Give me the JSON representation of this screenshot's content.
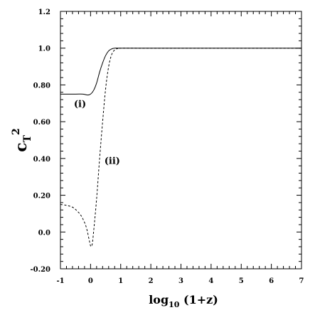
{
  "chart_data": {
    "type": "line",
    "title": "",
    "xlabel": "log10 (1+z)",
    "xlabel_parts": {
      "main": "log",
      "sub": "10",
      "rest": " (1+z)"
    },
    "ylabel": "cT^2",
    "ylabel_parts": {
      "main": "c",
      "sub": "T",
      "sup": "2"
    },
    "xlim": [
      -1,
      7
    ],
    "ylim": [
      -0.2,
      1.2
    ],
    "grid": false,
    "legend": "none",
    "x_ticks": [
      -1,
      0,
      1,
      2,
      3,
      4,
      5,
      6,
      7
    ],
    "x_tick_labels": [
      "-1",
      "0",
      "1",
      "2",
      "3",
      "4",
      "5",
      "6",
      "7"
    ],
    "y_ticks": [
      -0.2,
      0.0,
      0.2,
      0.4,
      0.6,
      0.8,
      1.0,
      1.2
    ],
    "y_tick_labels": [
      "-0.20",
      "0.0",
      "0.20",
      "0.40",
      "0.60",
      "0.80",
      "1.0",
      "1.2"
    ],
    "series": [
      {
        "style": "solid",
        "color": "#000000",
        "points": [
          [
            -1.0,
            0.75
          ],
          [
            -0.5,
            0.75
          ],
          [
            -0.25,
            0.75
          ],
          [
            -0.1,
            0.745
          ],
          [
            0.0,
            0.75
          ],
          [
            0.1,
            0.77
          ],
          [
            0.2,
            0.81
          ],
          [
            0.3,
            0.87
          ],
          [
            0.4,
            0.92
          ],
          [
            0.5,
            0.96
          ],
          [
            0.6,
            0.985
          ],
          [
            0.7,
            0.996
          ],
          [
            0.8,
            1.0
          ],
          [
            1.0,
            1.0
          ],
          [
            2.0,
            1.0
          ],
          [
            4.0,
            1.0
          ],
          [
            7.0,
            1.0
          ]
        ]
      },
      {
        "style": "dashed",
        "color": "#000000",
        "points": [
          [
            -1.0,
            0.15
          ],
          [
            -0.8,
            0.145
          ],
          [
            -0.6,
            0.135
          ],
          [
            -0.45,
            0.115
          ],
          [
            -0.3,
            0.085
          ],
          [
            -0.15,
            0.03
          ],
          [
            -0.05,
            -0.04
          ],
          [
            0.0,
            -0.075
          ],
          [
            0.05,
            -0.07
          ],
          [
            0.1,
            0.0
          ],
          [
            0.2,
            0.18
          ],
          [
            0.3,
            0.4
          ],
          [
            0.4,
            0.6
          ],
          [
            0.5,
            0.78
          ],
          [
            0.6,
            0.9
          ],
          [
            0.7,
            0.965
          ],
          [
            0.8,
            0.99
          ],
          [
            0.9,
            0.998
          ],
          [
            1.0,
            1.0
          ],
          [
            2.0,
            1.0
          ],
          [
            4.0,
            1.0
          ],
          [
            7.0,
            1.0
          ]
        ]
      }
    ],
    "annotations": [
      {
        "text": "(i)",
        "x": -0.35,
        "y": 0.68
      },
      {
        "text": "(ii)",
        "x": 0.72,
        "y": 0.37
      }
    ]
  }
}
